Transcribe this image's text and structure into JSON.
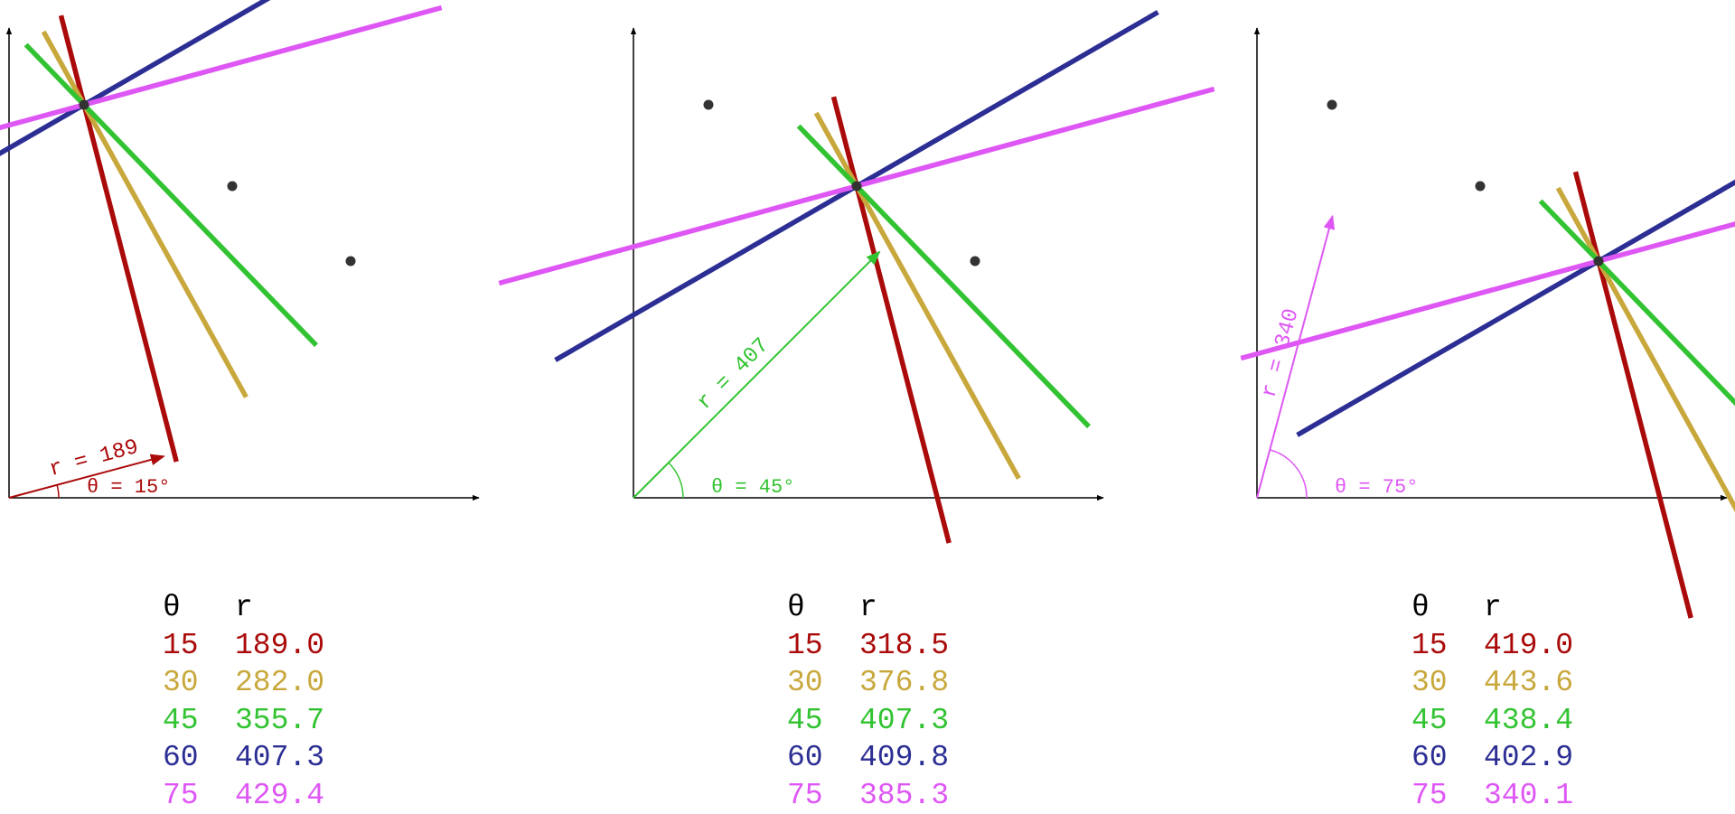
{
  "colors": {
    "axis": "#000000",
    "point": "#333333",
    "theta15": "#aa0a0a",
    "theta30": "#c8a83c",
    "theta45": "#32c332",
    "theta60": "#2c2e94",
    "theta75": "#de57f5"
  },
  "panels": [
    {
      "annotation": {
        "theta": 15,
        "color_key": "theta15",
        "r_label": "r = 189",
        "theta_label": "θ = 15°"
      },
      "table": {
        "header": {
          "theta": "θ",
          "r": "r"
        },
        "rows": [
          {
            "theta": "15",
            "r": "189.0",
            "color_key": "theta15"
          },
          {
            "theta": "30",
            "r": "282.0",
            "color_key": "theta30"
          },
          {
            "theta": "45",
            "r": "355.7",
            "color_key": "theta45"
          },
          {
            "theta": "60",
            "r": "407.3",
            "color_key": "theta60"
          },
          {
            "theta": "75",
            "r": "429.4",
            "color_key": "theta75"
          }
        ]
      }
    },
    {
      "annotation": {
        "theta": 45,
        "color_key": "theta45",
        "r_label": "r = 407",
        "theta_label": "θ = 45°"
      },
      "table": {
        "header": {
          "theta": "θ",
          "r": "r"
        },
        "rows": [
          {
            "theta": "15",
            "r": "318.5",
            "color_key": "theta15"
          },
          {
            "theta": "30",
            "r": "376.8",
            "color_key": "theta30"
          },
          {
            "theta": "45",
            "r": "407.3",
            "color_key": "theta45"
          },
          {
            "theta": "60",
            "r": "409.8",
            "color_key": "theta60"
          },
          {
            "theta": "75",
            "r": "385.3",
            "color_key": "theta75"
          }
        ]
      }
    },
    {
      "annotation": {
        "theta": 75,
        "color_key": "theta75",
        "r_label": "r = 340",
        "theta_label": "θ = 75°"
      },
      "table": {
        "header": {
          "theta": "θ",
          "r": "r"
        },
        "rows": [
          {
            "theta": "15",
            "r": "419.0",
            "color_key": "theta15"
          },
          {
            "theta": "30",
            "r": "443.6",
            "color_key": "theta30"
          },
          {
            "theta": "45",
            "r": "438.4",
            "color_key": "theta45"
          },
          {
            "theta": "60",
            "r": "402.9",
            "color_key": "theta60"
          },
          {
            "theta": "75",
            "r": "340.1",
            "color_key": "theta75"
          }
        ]
      }
    }
  ]
}
